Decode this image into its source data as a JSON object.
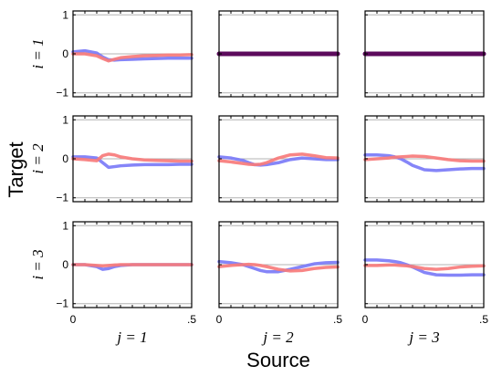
{
  "chart_data": {
    "type": "line",
    "layout": "3x3 grid of small multiples",
    "xlabel": "Source",
    "ylabel": "Target",
    "row_labels": [
      "i = 1",
      "i = 2",
      "i = 3"
    ],
    "col_labels": [
      "j = 1",
      "j = 2",
      "j = 3"
    ],
    "xlim": [
      0,
      0.5
    ],
    "ylim": [
      -1.1,
      1.1
    ],
    "x_ticks": [
      {
        "value": 0,
        "label": "0"
      },
      {
        "value": 0.5,
        "label": ".5"
      }
    ],
    "y_ticks": [
      {
        "value": 1,
        "label": "1"
      },
      {
        "value": 0,
        "label": "0"
      },
      {
        "value": -1,
        "label": "−1"
      }
    ],
    "grid": "horizontal reference lines at y = -1, 0, 1",
    "x": [
      0,
      0.05,
      0.1,
      0.125,
      0.15,
      0.175,
      0.2,
      0.25,
      0.3,
      0.35,
      0.4,
      0.45,
      0.5
    ],
    "series_colors": [
      "#7b7bf7",
      "#f77b7b"
    ],
    "diagonal_color": "#5c0a5c",
    "panels": [
      {
        "row": 1,
        "col": 1,
        "lines": [
          {
            "color": "#7b7bf7",
            "y": [
              0.05,
              0.08,
              0.02,
              -0.08,
              -0.15,
              -0.16,
              -0.15,
              -0.14,
              -0.13,
              -0.12,
              -0.11,
              -0.11,
              -0.11
            ]
          },
          {
            "color": "#f77b7b",
            "y": [
              0.0,
              0.0,
              -0.05,
              -0.12,
              -0.18,
              -0.14,
              -0.1,
              -0.07,
              -0.05,
              -0.04,
              -0.03,
              -0.03,
              -0.02
            ]
          }
        ]
      },
      {
        "row": 1,
        "col": 2,
        "diagonal": true,
        "lines": [
          {
            "color": "#5c0a5c",
            "y": [
              0,
              0,
              0,
              0,
              0,
              0,
              0,
              0,
              0,
              0,
              0,
              0,
              0
            ]
          }
        ]
      },
      {
        "row": 1,
        "col": 3,
        "diagonal": true,
        "lines": [
          {
            "color": "#5c0a5c",
            "y": [
              0,
              0,
              0,
              0,
              0,
              0,
              0,
              0,
              0,
              0,
              0,
              0,
              0
            ]
          }
        ]
      },
      {
        "row": 2,
        "col": 1,
        "lines": [
          {
            "color": "#7b7bf7",
            "y": [
              0.05,
              0.05,
              0.02,
              -0.1,
              -0.22,
              -0.2,
              -0.18,
              -0.16,
              -0.15,
              -0.15,
              -0.15,
              -0.14,
              -0.14
            ]
          },
          {
            "color": "#f77b7b",
            "y": [
              0.0,
              -0.02,
              -0.05,
              0.08,
              0.12,
              0.1,
              0.05,
              0.0,
              -0.03,
              -0.04,
              -0.05,
              -0.06,
              -0.06
            ]
          }
        ]
      },
      {
        "row": 2,
        "col": 2,
        "lines": [
          {
            "color": "#7b7bf7",
            "y": [
              0.05,
              0.02,
              -0.04,
              -0.1,
              -0.15,
              -0.16,
              -0.15,
              -0.1,
              -0.02,
              0.02,
              0.0,
              -0.02,
              -0.02
            ]
          },
          {
            "color": "#f77b7b",
            "y": [
              -0.05,
              -0.08,
              -0.12,
              -0.14,
              -0.15,
              -0.14,
              -0.1,
              0.02,
              0.1,
              0.12,
              0.08,
              0.03,
              0.02
            ]
          }
        ]
      },
      {
        "row": 2,
        "col": 3,
        "lines": [
          {
            "color": "#7b7bf7",
            "y": [
              0.1,
              0.1,
              0.08,
              0.05,
              0.0,
              -0.08,
              -0.17,
              -0.28,
              -0.3,
              -0.28,
              -0.26,
              -0.25,
              -0.25
            ]
          },
          {
            "color": "#f77b7b",
            "y": [
              -0.02,
              0.0,
              0.02,
              0.04,
              0.05,
              0.06,
              0.07,
              0.06,
              0.02,
              -0.02,
              -0.05,
              -0.06,
              -0.06
            ]
          }
        ]
      },
      {
        "row": 3,
        "col": 1,
        "lines": [
          {
            "color": "#7b7bf7",
            "y": [
              0.0,
              0.0,
              -0.05,
              -0.12,
              -0.1,
              -0.05,
              -0.02,
              0.0,
              0.0,
              0.0,
              0.0,
              0.0,
              0.0
            ]
          },
          {
            "color": "#f77b7b",
            "y": [
              0.0,
              0.0,
              -0.02,
              -0.03,
              -0.02,
              -0.01,
              0.0,
              0.0,
              0.0,
              0.0,
              0.0,
              0.0,
              0.0
            ]
          }
        ]
      },
      {
        "row": 3,
        "col": 2,
        "lines": [
          {
            "color": "#7b7bf7",
            "y": [
              0.08,
              0.05,
              0.0,
              -0.05,
              -0.1,
              -0.15,
              -0.18,
              -0.18,
              -0.12,
              -0.05,
              0.02,
              0.05,
              0.06
            ]
          },
          {
            "color": "#f77b7b",
            "y": [
              -0.05,
              -0.02,
              0.0,
              0.01,
              0.0,
              -0.02,
              -0.05,
              -0.12,
              -0.16,
              -0.15,
              -0.1,
              -0.07,
              -0.06
            ]
          }
        ]
      },
      {
        "row": 3,
        "col": 3,
        "lines": [
          {
            "color": "#7b7bf7",
            "y": [
              0.12,
              0.12,
              0.1,
              0.08,
              0.05,
              0.0,
              -0.06,
              -0.2,
              -0.26,
              -0.27,
              -0.27,
              -0.26,
              -0.26
            ]
          },
          {
            "color": "#f77b7b",
            "y": [
              -0.02,
              -0.02,
              -0.01,
              -0.01,
              -0.02,
              -0.03,
              -0.05,
              -0.1,
              -0.12,
              -0.1,
              -0.06,
              -0.04,
              -0.03
            ]
          }
        ]
      }
    ]
  }
}
